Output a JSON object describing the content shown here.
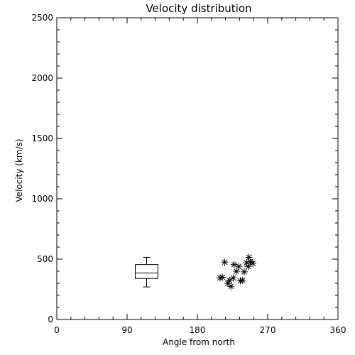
{
  "chart_data": {
    "type": "scatter",
    "title": "Velocity distribution",
    "xlabel": "Angle from north",
    "ylabel": "Velocity (km/s)",
    "xlim": [
      0,
      360
    ],
    "ylim": [
      0,
      2500
    ],
    "x_ticks": [
      "0",
      "90",
      "180",
      "270",
      "360"
    ],
    "y_ticks": [
      "0",
      "500",
      "1000",
      "1500",
      "2000",
      "2500"
    ],
    "grid": false,
    "boxplot": {
      "x": 115,
      "min": 270,
      "q1": 340,
      "median": 385,
      "q3": 455,
      "max": 515
    },
    "points": [
      {
        "x": 209,
        "y": 345
      },
      {
        "x": 212,
        "y": 350
      },
      {
        "x": 215,
        "y": 475
      },
      {
        "x": 219,
        "y": 300
      },
      {
        "x": 221,
        "y": 325
      },
      {
        "x": 223,
        "y": 275
      },
      {
        "x": 226,
        "y": 345
      },
      {
        "x": 227,
        "y": 455
      },
      {
        "x": 230,
        "y": 400
      },
      {
        "x": 233,
        "y": 440
      },
      {
        "x": 235,
        "y": 320
      },
      {
        "x": 238,
        "y": 325
      },
      {
        "x": 240,
        "y": 395
      },
      {
        "x": 243,
        "y": 470
      },
      {
        "x": 245,
        "y": 440
      },
      {
        "x": 246,
        "y": 515
      },
      {
        "x": 248,
        "y": 480
      },
      {
        "x": 251,
        "y": 465
      }
    ],
    "colors": {
      "axis": "#000000",
      "marks": "#000000",
      "background": "#ffffff"
    }
  }
}
